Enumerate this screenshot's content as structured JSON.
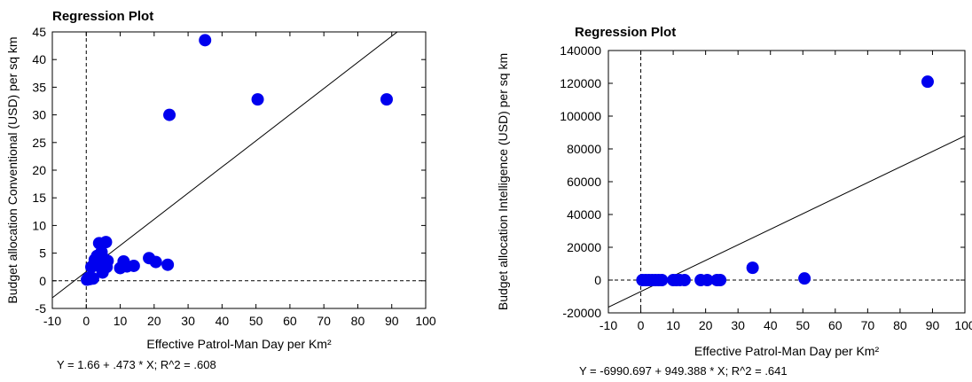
{
  "chart_data": [
    {
      "type": "scatter",
      "title": "Regression Plot",
      "xlabel": "Effective Patrol-Man Day per Km²",
      "ylabel": "Budget allocation Conventional (USD) per sq km",
      "xlim": [
        -10,
        100
      ],
      "ylim": [
        -5,
        45
      ],
      "xticks": [
        "-10",
        "0",
        "10",
        "20",
        "30",
        "40",
        "50",
        "60",
        "70",
        "80",
        "90",
        "100"
      ],
      "yticks": [
        "-5",
        "0",
        "5",
        "10",
        "15",
        "20",
        "25",
        "30",
        "35",
        "40",
        "45"
      ],
      "points": [
        {
          "x": 0.2,
          "y": 0.2
        },
        {
          "x": 0.6,
          "y": 0.5
        },
        {
          "x": 1.0,
          "y": 0.3
        },
        {
          "x": 1.4,
          "y": 0.6
        },
        {
          "x": 2.0,
          "y": 0.4
        },
        {
          "x": 1.5,
          "y": 2.5
        },
        {
          "x": 2.5,
          "y": 3.8
        },
        {
          "x": 3.0,
          "y": 2.8
        },
        {
          "x": 3.2,
          "y": 4.5
        },
        {
          "x": 3.8,
          "y": 6.8
        },
        {
          "x": 4.2,
          "y": 3.2
        },
        {
          "x": 4.5,
          "y": 5.2
        },
        {
          "x": 4.8,
          "y": 1.5
        },
        {
          "x": 5.2,
          "y": 4.0
        },
        {
          "x": 5.8,
          "y": 7.0
        },
        {
          "x": 6.0,
          "y": 2.5
        },
        {
          "x": 6.3,
          "y": 3.6
        },
        {
          "x": 10.0,
          "y": 2.3
        },
        {
          "x": 11.0,
          "y": 3.5
        },
        {
          "x": 12.0,
          "y": 2.6
        },
        {
          "x": 14.0,
          "y": 2.7
        },
        {
          "x": 18.5,
          "y": 4.1
        },
        {
          "x": 20.5,
          "y": 3.4
        },
        {
          "x": 24.0,
          "y": 2.9
        },
        {
          "x": 24.5,
          "y": 30.0
        },
        {
          "x": 35.0,
          "y": 43.5
        },
        {
          "x": 50.5,
          "y": 32.8
        },
        {
          "x": 88.5,
          "y": 32.8
        }
      ],
      "regression": {
        "intercept": 1.66,
        "slope": 0.473
      },
      "reference_lines": {
        "x": 0,
        "y": 0
      },
      "grid": false,
      "legend": "none",
      "equation": "Y = 1.66 + .473 * X; R^2 = .608",
      "point_color": "#0000ee"
    },
    {
      "type": "scatter",
      "title": "Regression Plot",
      "xlabel": "Effective Patrol-Man Day per Km²",
      "ylabel": "Budget allocation Intelligence (USD) per sq km",
      "xlim": [
        -10,
        100
      ],
      "ylim": [
        -20000,
        140000
      ],
      "xticks": [
        "-10",
        "0",
        "10",
        "20",
        "30",
        "40",
        "50",
        "60",
        "70",
        "80",
        "90",
        "100"
      ],
      "yticks": [
        "-20000",
        "0",
        "20000",
        "40000",
        "60000",
        "80000",
        "100000",
        "120000",
        "140000"
      ],
      "points": [
        {
          "x": 0.5,
          "y": 0
        },
        {
          "x": 1.5,
          "y": 0
        },
        {
          "x": 2.5,
          "y": 0
        },
        {
          "x": 3.5,
          "y": 0
        },
        {
          "x": 4.5,
          "y": 0
        },
        {
          "x": 5.5,
          "y": 0
        },
        {
          "x": 6.5,
          "y": 0
        },
        {
          "x": 10.0,
          "y": 0
        },
        {
          "x": 11.0,
          "y": 0
        },
        {
          "x": 12.0,
          "y": 0
        },
        {
          "x": 13.5,
          "y": 0
        },
        {
          "x": 18.5,
          "y": 0
        },
        {
          "x": 20.5,
          "y": 0
        },
        {
          "x": 23.5,
          "y": 0
        },
        {
          "x": 24.5,
          "y": 0
        },
        {
          "x": 34.5,
          "y": 7500
        },
        {
          "x": 50.5,
          "y": 1000
        },
        {
          "x": 88.5,
          "y": 121000
        }
      ],
      "regression": {
        "intercept": -6990.697,
        "slope": 949.388
      },
      "reference_lines": {
        "x": 0,
        "y": 0
      },
      "grid": false,
      "legend": "none",
      "equation": "Y = -6990.697 + 949.388 * X; R^2 = .641",
      "point_color": "#0000ee"
    }
  ]
}
